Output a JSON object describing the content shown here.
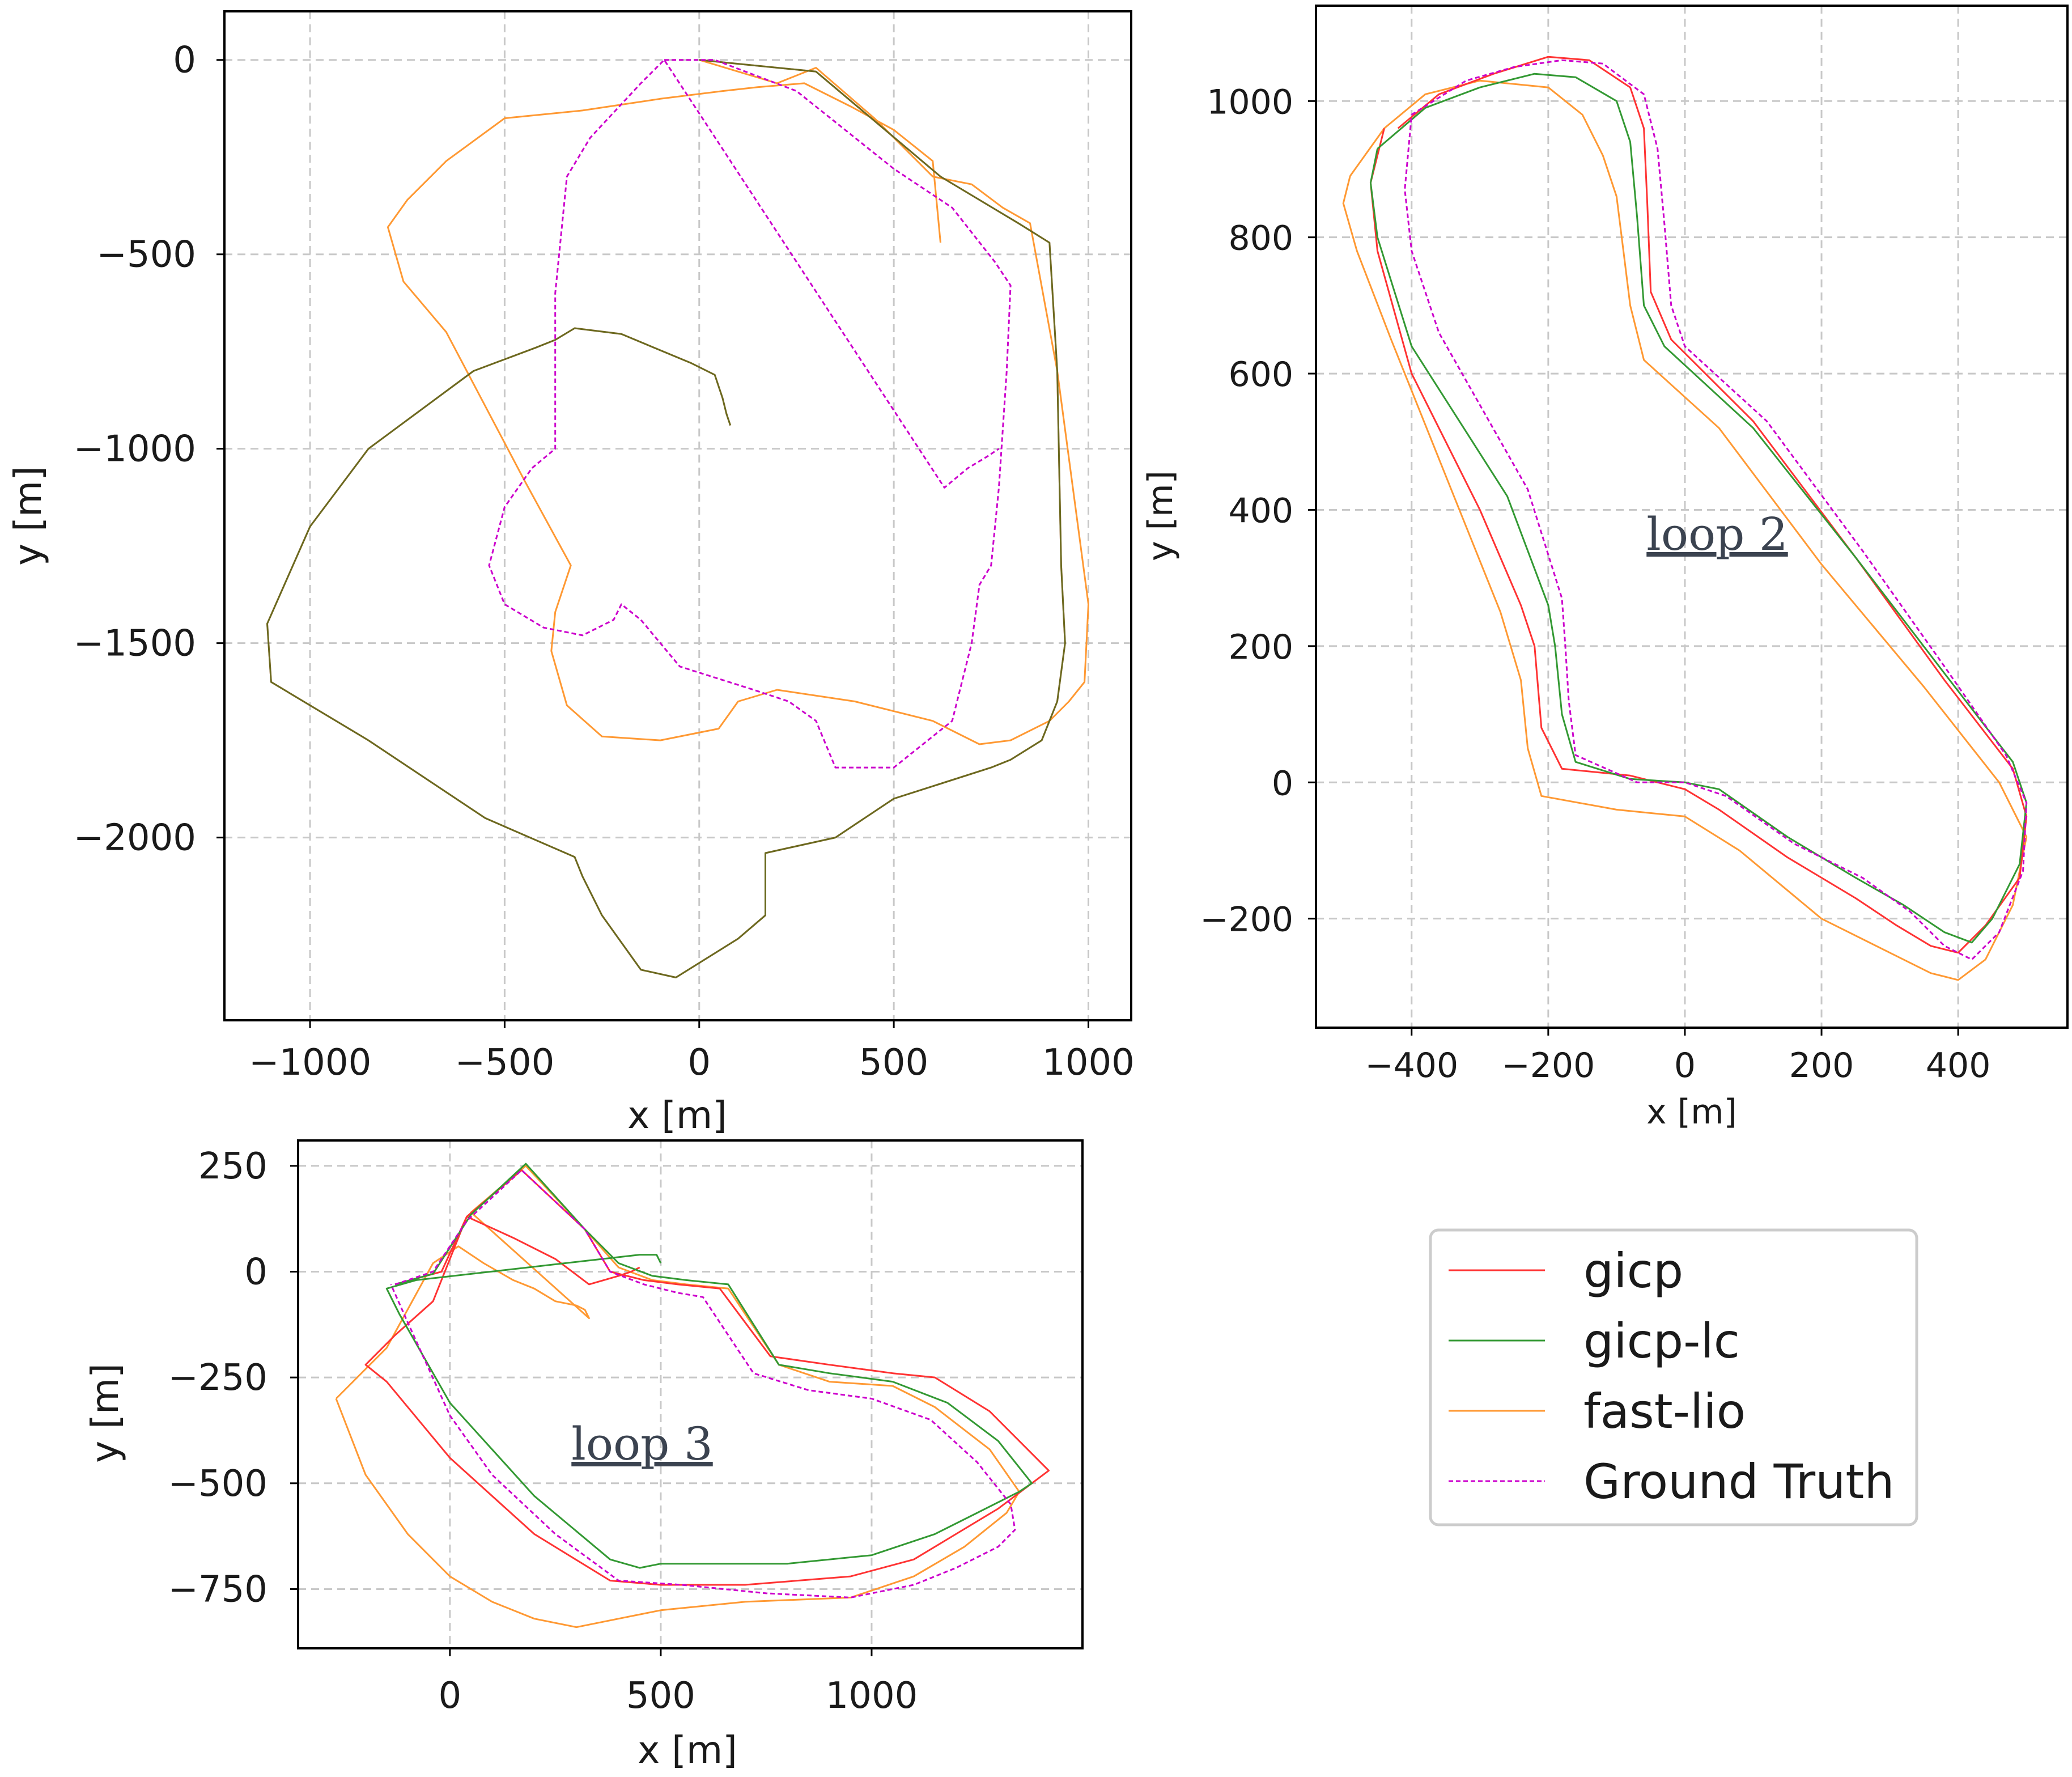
{
  "chart_data": [
    {
      "type": "line",
      "xlabel": "x [m]",
      "ylabel": "y [m]",
      "xlim": [
        -1220,
        1110
      ],
      "ylim": [
        -2470,
        125
      ],
      "xticks": [
        -1000,
        -500,
        0,
        500,
        1000
      ],
      "yticks": [
        0,
        -500,
        -1000,
        -1500,
        -2000
      ],
      "xtick_labels": [
        "−1000",
        "−500",
        "0",
        "500",
        "1000"
      ],
      "ytick_labels": [
        "0",
        "−500",
        "−1000",
        "−1500",
        "−2000"
      ],
      "grid": true,
      "series": [
        {
          "name": "gicp",
          "x": [
            0,
            300,
            620,
            820,
            900,
            920,
            930,
            940,
            920,
            880,
            800,
            750,
            500,
            350,
            170,
            170,
            100,
            -60,
            -150,
            -250,
            -300,
            -320,
            -550,
            -850,
            -1100,
            -1110,
            -1000,
            -850,
            -580,
            -420,
            -370,
            -320,
            -200,
            -20,
            40,
            60,
            70,
            80
          ],
          "y": [
            0,
            -30,
            -300,
            -420,
            -470,
            -800,
            -1300,
            -1500,
            -1650,
            -1750,
            -1800,
            -1820,
            -1900,
            -2000,
            -2040,
            -2200,
            -2260,
            -2360,
            -2340,
            -2200,
            -2100,
            -2050,
            -1950,
            -1750,
            -1600,
            -1450,
            -1200,
            -1000,
            -800,
            -740,
            -720,
            -690,
            -705,
            -780,
            -810,
            -870,
            -910,
            -940
          ]
        },
        {
          "name": "gicp-lc",
          "x": [
            0,
            300,
            620,
            820,
            900,
            920,
            930,
            940,
            920,
            880,
            800,
            750,
            500,
            350,
            170,
            170,
            100,
            -60,
            -150,
            -250,
            -300,
            -320,
            -550,
            -850,
            -1100,
            -1110,
            -1000,
            -850,
            -580,
            -420,
            -370,
            -320,
            -200,
            -20,
            40,
            60,
            70,
            80
          ],
          "y": [
            0,
            -30,
            -300,
            -420,
            -470,
            -800,
            -1300,
            -1500,
            -1650,
            -1750,
            -1800,
            -1820,
            -1900,
            -2000,
            -2040,
            -2200,
            -2260,
            -2360,
            -2340,
            -2200,
            -2100,
            -2050,
            -1950,
            -1750,
            -1600,
            -1450,
            -1200,
            -1000,
            -800,
            -740,
            -720,
            -690,
            -705,
            -780,
            -810,
            -870,
            -910,
            -940
          ]
        },
        {
          "name": "fast-lio",
          "x": [
            0,
            200,
            300,
            450,
            600,
            700,
            780,
            850,
            920,
            960,
            1000,
            990,
            950,
            900,
            800,
            720,
            600,
            400,
            200,
            100,
            50,
            -100,
            -250,
            -340,
            -380,
            -370,
            -330,
            -450,
            -650,
            -760,
            -800,
            -750,
            -650,
            -500,
            -300,
            -100,
            60,
            150,
            270,
            390,
            500,
            600,
            620
          ],
          "y": [
            0,
            -60,
            -20,
            -150,
            -300,
            -320,
            -380,
            -420,
            -800,
            -1100,
            -1400,
            -1600,
            -1650,
            -1700,
            -1750,
            -1760,
            -1700,
            -1650,
            -1620,
            -1650,
            -1720,
            -1750,
            -1740,
            -1660,
            -1520,
            -1420,
            -1300,
            -1080,
            -700,
            -570,
            -430,
            -360,
            -260,
            -150,
            -130,
            -100,
            -80,
            -70,
            -60,
            -120,
            -180,
            -260,
            -470
          ]
        },
        {
          "name": "Ground Truth",
          "x": [
            -90,
            -40,
            40,
            250,
            500,
            650,
            760,
            800,
            790,
            770,
            750,
            720,
            700,
            650,
            500,
            350,
            300,
            230,
            140,
            -50,
            -100,
            -150,
            -200,
            -220,
            -300,
            -400,
            -500,
            -540,
            -500,
            -430,
            -370,
            -370,
            -340,
            -280,
            -150,
            -90,
            630,
            690,
            740,
            770
          ],
          "y": [
            0,
            0,
            0,
            -80,
            -280,
            -380,
            -520,
            -580,
            -800,
            -1100,
            -1300,
            -1350,
            -1500,
            -1700,
            -1820,
            -1820,
            -1700,
            -1650,
            -1620,
            -1560,
            -1500,
            -1440,
            -1400,
            -1440,
            -1480,
            -1460,
            -1400,
            -1300,
            -1150,
            -1050,
            -1000,
            -600,
            -300,
            -200,
            -60,
            0,
            -1100,
            -1050,
            -1020,
            -1000
          ]
        }
      ]
    },
    {
      "type": "line",
      "title": "loop 2",
      "xlabel": "x [m]",
      "ylabel": "y [m]",
      "xlim": [
        -540,
        560
      ],
      "ylim": [
        -360,
        1140
      ],
      "xticks": [
        -400,
        -200,
        0,
        200,
        400
      ],
      "yticks": [
        1000,
        800,
        600,
        400,
        200,
        0,
        -200
      ],
      "xtick_labels": [
        "−400",
        "−200",
        "0",
        "200",
        "400"
      ],
      "ytick_labels": [
        "1000",
        "800",
        "600",
        "400",
        "200",
        "0",
        "−200"
      ],
      "grid": true,
      "series": [
        {
          "name": "gicp",
          "x": [
            -420,
            -360,
            -280,
            -200,
            -140,
            -80,
            -60,
            -55,
            -50,
            -20,
            100,
            250,
            380,
            480,
            500,
            490,
            440,
            400,
            360,
            310,
            250,
            150,
            50,
            0,
            -80,
            -180,
            -210,
            -220,
            -240,
            -300,
            -400,
            -450,
            -460,
            -440
          ],
          "y": [
            960,
            1010,
            1040,
            1065,
            1060,
            1020,
            960,
            850,
            720,
            650,
            530,
            330,
            150,
            20,
            -50,
            -140,
            -210,
            -250,
            -240,
            -210,
            -170,
            -110,
            -40,
            -10,
            10,
            20,
            80,
            200,
            260,
            400,
            600,
            780,
            880,
            960
          ]
        },
        {
          "name": "gicp-lc",
          "x": [
            -450,
            -380,
            -300,
            -220,
            -160,
            -100,
            -80,
            -70,
            -60,
            -30,
            100,
            250,
            380,
            480,
            500,
            490,
            450,
            420,
            380,
            320,
            250,
            150,
            50,
            0,
            -80,
            -160,
            -180,
            -190,
            -200,
            -260,
            -400,
            -450,
            -460,
            -450
          ],
          "y": [
            930,
            990,
            1020,
            1040,
            1035,
            1000,
            940,
            830,
            700,
            640,
            520,
            330,
            160,
            30,
            -30,
            -120,
            -200,
            -235,
            -220,
            -180,
            -140,
            -80,
            -10,
            0,
            5,
            30,
            100,
            200,
            260,
            420,
            640,
            800,
            880,
            930
          ]
        },
        {
          "name": "fast-lio",
          "x": [
            -490,
            -440,
            -380,
            -300,
            -200,
            -150,
            -120,
            -100,
            -90,
            -80,
            -60,
            50,
            200,
            350,
            460,
            500,
            480,
            440,
            400,
            360,
            300,
            200,
            80,
            0,
            -100,
            -210,
            -230,
            -240,
            -270,
            -330,
            -430,
            -480,
            -500,
            -490
          ],
          "y": [
            890,
            960,
            1010,
            1030,
            1020,
            980,
            920,
            860,
            780,
            700,
            620,
            520,
            320,
            140,
            0,
            -80,
            -180,
            -260,
            -290,
            -280,
            -250,
            -200,
            -100,
            -50,
            -40,
            -20,
            50,
            150,
            250,
            400,
            650,
            780,
            850,
            890
          ]
        },
        {
          "name": "Ground Truth",
          "x": [
            -400,
            -320,
            -250,
            -180,
            -120,
            -60,
            -40,
            -30,
            -20,
            0,
            120,
            260,
            380,
            470,
            500,
            495,
            460,
            420,
            380,
            330,
            260,
            160,
            60,
            0,
            -70,
            -160,
            -170,
            -175,
            -180,
            -230,
            -360,
            -400,
            -410,
            -400
          ],
          "y": [
            980,
            1030,
            1050,
            1060,
            1055,
            1010,
            930,
            820,
            700,
            640,
            530,
            340,
            170,
            40,
            -30,
            -130,
            -220,
            -260,
            -240,
            -190,
            -140,
            -90,
            -20,
            0,
            0,
            40,
            120,
            200,
            270,
            430,
            660,
            780,
            870,
            980
          ]
        }
      ]
    },
    {
      "type": "line",
      "title": "loop 3",
      "xlabel": "x [m]",
      "ylabel": "y [m]",
      "xlim": [
        -360,
        1500
      ],
      "ylim": [
        -890,
        310
      ],
      "xticks": [
        0,
        500,
        1000
      ],
      "yticks": [
        250,
        0,
        -250,
        -500,
        -750
      ],
      "xtick_labels": [
        "0",
        "500",
        "1000"
      ],
      "ytick_labels": [
        "250",
        "0",
        "−250",
        "−500",
        "−750"
      ],
      "grid": true,
      "series": [
        {
          "name": "gicp",
          "x": [
            -130,
            -20,
            40,
            170,
            320,
            380,
            460,
            540,
            640,
            760,
            900,
            1050,
            1150,
            1280,
            1420,
            1380,
            1300,
            1200,
            1100,
            950,
            700,
            500,
            380,
            200,
            0,
            -150,
            -200,
            -130,
            -40,
            40,
            150,
            250,
            330,
            400,
            430,
            450
          ],
          "y": [
            -30,
            0,
            130,
            240,
            100,
            0,
            -20,
            -30,
            -40,
            -200,
            -220,
            -240,
            -250,
            -330,
            -470,
            -500,
            -560,
            -620,
            -680,
            -720,
            -740,
            -740,
            -730,
            -620,
            -440,
            -260,
            -220,
            -150,
            -70,
            130,
            80,
            30,
            -30,
            -10,
            0,
            10
          ]
        },
        {
          "name": "gicp-lc",
          "x": [
            -130,
            -40,
            50,
            180,
            320,
            400,
            480,
            560,
            660,
            780,
            900,
            1050,
            1180,
            1300,
            1380,
            1350,
            1250,
            1150,
            1000,
            800,
            600,
            500,
            450,
            380,
            200,
            0,
            -120,
            -150,
            -80,
            450,
            490,
            500
          ],
          "y": [
            -30,
            -5,
            135,
            255,
            100,
            20,
            -10,
            -20,
            -30,
            -220,
            -240,
            -260,
            -310,
            -400,
            -500,
            -520,
            -570,
            -620,
            -670,
            -690,
            -690,
            -690,
            -700,
            -680,
            -530,
            -310,
            -100,
            -40,
            -20,
            40,
            40,
            20
          ]
        },
        {
          "name": "fast-lio",
          "x": [
            -270,
            -150,
            -40,
            20,
            80,
            150,
            200,
            250,
            300,
            320,
            330,
            50,
            180,
            320,
            400,
            480,
            560,
            660,
            780,
            900,
            1050,
            1150,
            1280,
            1350,
            1320,
            1220,
            1100,
            950,
            700,
            500,
            400,
            300,
            200,
            100,
            0,
            -100,
            -200,
            -270
          ],
          "y": [
            -300,
            -180,
            20,
            60,
            20,
            -20,
            -40,
            -70,
            -80,
            -90,
            -110,
            140,
            250,
            100,
            10,
            -20,
            -30,
            -40,
            -220,
            -260,
            -270,
            -320,
            -420,
            -520,
            -570,
            -650,
            -720,
            -770,
            -780,
            -800,
            -820,
            -840,
            -820,
            -780,
            -720,
            -620,
            -480,
            -300
          ]
        },
        {
          "name": "Ground Truth",
          "x": [
            -130,
            -40,
            40,
            170,
            320,
            380,
            460,
            540,
            600,
            720,
            850,
            1000,
            1140,
            1250,
            1330,
            1340,
            1300,
            1200,
            1100,
            950,
            750,
            550,
            400,
            250,
            100,
            0,
            -100,
            -140
          ],
          "y": [
            -30,
            0,
            120,
            240,
            100,
            0,
            -30,
            -50,
            -60,
            -240,
            -280,
            -300,
            -350,
            -450,
            -550,
            -610,
            -650,
            -700,
            -740,
            -770,
            -760,
            -740,
            -730,
            -620,
            -480,
            -340,
            -120,
            -30
          ]
        }
      ]
    }
  ],
  "colors": {
    "gicp": "#ff3333",
    "gicp-lc": "#339933",
    "fast-lio": "#ff9933",
    "Ground Truth": "#cc00cc",
    "gicp_overlay_panel1": "#6a6a1f"
  },
  "legend": {
    "placement": "lower-right",
    "items": [
      {
        "label": "gicp",
        "color": "#ff3333",
        "dashed": false
      },
      {
        "label": "gicp-lc",
        "color": "#339933",
        "dashed": false
      },
      {
        "label": "fast-lio",
        "color": "#ff9933",
        "dashed": false
      },
      {
        "label": "Ground Truth",
        "color": "#cc00cc",
        "dashed": true
      }
    ]
  }
}
